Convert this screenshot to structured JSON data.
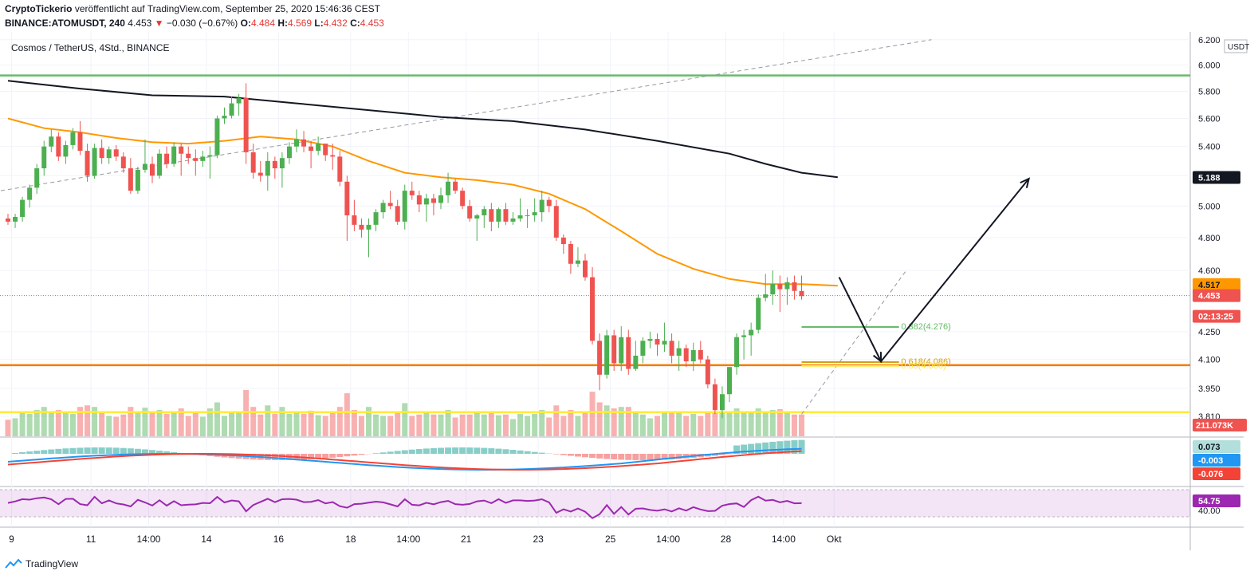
{
  "header": {
    "publisher": "CryptoTickerio",
    "published_text": "veröffentlicht auf TradingView.com, September 25, 2020 15:46:36 CEST",
    "ticker": "BINANCE:ATOMUSDT, 240",
    "last": "4.453",
    "arrow": "▼",
    "change": "−0.030 (−0.67%)",
    "o_label": "O:",
    "o": "4.484",
    "h_label": "H:",
    "h": "4.569",
    "l_label": "L:",
    "l": "4.432",
    "c_label": "C:",
    "c": "4.453"
  },
  "symbol_title": "Cosmos / TetherUS, 4Std., BINANCE",
  "footer": {
    "brand": "TradingView"
  },
  "colors": {
    "up": "#4caf50",
    "down": "#ef5350",
    "ma_orange": "#ff9800",
    "ma_black": "#131722",
    "green_line": "#66bb6a",
    "orange_line": "#f57c00",
    "yellow_line": "#ffeb3b",
    "macd_line": "#2196f3",
    "signal_line": "#f44336",
    "rsi_line": "#9c27b0"
  },
  "chart_data": {
    "type": "candlestick",
    "title": "Cosmos / TetherUS, 4Std., BINANCE",
    "scale": "log",
    "currency": "USDT",
    "ylim": [
      3.72,
      6.25
    ],
    "y_ticks": [
      "6.200",
      "6.000",
      "5.800",
      "5.600",
      "5.400",
      "5.200",
      "5.000",
      "4.800",
      "4.600",
      "4.250",
      "4.100",
      "3.950",
      "3.810"
    ],
    "x_ticks": [
      "9",
      "11",
      "14:00",
      "14",
      "16",
      "18",
      "14:00",
      "21",
      "23",
      "25",
      "14:00",
      "28",
      "14:00",
      "Okt"
    ],
    "x_ticks_index": [
      0.5,
      11.5,
      19.5,
      27.5,
      37.5,
      47.5,
      55.5,
      63.5,
      73.5,
      83.5,
      91.5,
      99.5,
      107.5,
      114.5
    ],
    "candles": [
      [
        4.92,
        4.95,
        4.88,
        4.9
      ],
      [
        4.9,
        4.95,
        4.86,
        4.93
      ],
      [
        4.93,
        5.06,
        4.9,
        5.04
      ],
      [
        5.04,
        5.14,
        4.99,
        5.12
      ],
      [
        5.12,
        5.28,
        5.08,
        5.25
      ],
      [
        5.25,
        5.44,
        5.2,
        5.4
      ],
      [
        5.4,
        5.52,
        5.36,
        5.47
      ],
      [
        5.47,
        5.5,
        5.3,
        5.33
      ],
      [
        5.33,
        5.44,
        5.28,
        5.41
      ],
      [
        5.41,
        5.53,
        5.38,
        5.5
      ],
      [
        5.5,
        5.58,
        5.34,
        5.37
      ],
      [
        5.37,
        5.42,
        5.16,
        5.2
      ],
      [
        5.2,
        5.42,
        5.18,
        5.39
      ],
      [
        5.39,
        5.45,
        5.28,
        5.32
      ],
      [
        5.32,
        5.4,
        5.28,
        5.38
      ],
      [
        5.38,
        5.41,
        5.3,
        5.33
      ],
      [
        5.33,
        5.36,
        5.22,
        5.25
      ],
      [
        5.25,
        5.32,
        5.08,
        5.1
      ],
      [
        5.1,
        5.26,
        5.08,
        5.24
      ],
      [
        5.24,
        5.45,
        5.22,
        5.28
      ],
      [
        5.28,
        5.33,
        5.15,
        5.2
      ],
      [
        5.2,
        5.38,
        5.18,
        5.35
      ],
      [
        5.35,
        5.4,
        5.25,
        5.28
      ],
      [
        5.28,
        5.43,
        5.26,
        5.4
      ],
      [
        5.4,
        5.42,
        5.2,
        5.35
      ],
      [
        5.35,
        5.4,
        5.28,
        5.32
      ],
      [
        5.32,
        5.38,
        5.2,
        5.3
      ],
      [
        5.3,
        5.37,
        5.26,
        5.33
      ],
      [
        5.33,
        5.4,
        5.18,
        5.34
      ],
      [
        5.34,
        5.62,
        5.32,
        5.6
      ],
      [
        5.6,
        5.68,
        5.56,
        5.62
      ],
      [
        5.62,
        5.76,
        5.6,
        5.71
      ],
      [
        5.71,
        5.78,
        5.62,
        5.75
      ],
      [
        5.75,
        5.86,
        5.28,
        5.36
      ],
      [
        5.36,
        5.42,
        5.18,
        5.22
      ],
      [
        5.22,
        5.3,
        5.16,
        5.2
      ],
      [
        5.2,
        5.36,
        5.1,
        5.3
      ],
      [
        5.3,
        5.33,
        5.18,
        5.25
      ],
      [
        5.25,
        5.36,
        5.12,
        5.32
      ],
      [
        5.32,
        5.43,
        5.28,
        5.4
      ],
      [
        5.4,
        5.52,
        5.36,
        5.45
      ],
      [
        5.45,
        5.51,
        5.36,
        5.4
      ],
      [
        5.4,
        5.44,
        5.25,
        5.37
      ],
      [
        5.37,
        5.47,
        5.34,
        5.42
      ],
      [
        5.42,
        5.42,
        5.3,
        5.34
      ],
      [
        5.34,
        5.42,
        5.24,
        5.33
      ],
      [
        5.33,
        5.37,
        5.13,
        5.16
      ],
      [
        5.16,
        5.2,
        4.78,
        4.94
      ],
      [
        4.94,
        5.04,
        4.84,
        4.88
      ],
      [
        4.88,
        4.92,
        4.8,
        4.85
      ],
      [
        4.85,
        4.92,
        4.68,
        4.88
      ],
      [
        4.88,
        4.98,
        4.84,
        4.96
      ],
      [
        4.96,
        5.04,
        4.92,
        5.02
      ],
      [
        5.02,
        5.1,
        4.98,
        5.0
      ],
      [
        5.0,
        5.04,
        4.88,
        4.9
      ],
      [
        4.9,
        5.14,
        4.85,
        5.1
      ],
      [
        5.1,
        5.16,
        5.04,
        5.07
      ],
      [
        5.07,
        5.1,
        4.96,
        5.01
      ],
      [
        5.01,
        5.08,
        4.9,
        5.05
      ],
      [
        5.05,
        5.08,
        4.94,
        5.02
      ],
      [
        5.02,
        5.12,
        4.98,
        5.07
      ],
      [
        5.07,
        5.22,
        5.02,
        5.16
      ],
      [
        5.16,
        5.18,
        5.08,
        5.1
      ],
      [
        5.1,
        5.12,
        4.98,
        5.0
      ],
      [
        5.0,
        5.04,
        4.9,
        4.92
      ],
      [
        4.92,
        4.95,
        4.78,
        4.94
      ],
      [
        4.94,
        5.0,
        4.86,
        4.98
      ],
      [
        4.98,
        5.02,
        4.84,
        4.9
      ],
      [
        4.9,
        4.99,
        4.86,
        4.98
      ],
      [
        4.98,
        5.02,
        4.88,
        4.9
      ],
      [
        4.9,
        4.96,
        4.88,
        4.92
      ],
      [
        4.92,
        5.05,
        4.9,
        4.94
      ],
      [
        4.94,
        4.98,
        4.86,
        4.94
      ],
      [
        4.94,
        5.05,
        4.9,
        4.96
      ],
      [
        4.96,
        5.1,
        4.9,
        5.04
      ],
      [
        5.04,
        5.06,
        4.96,
        5.0
      ],
      [
        5.0,
        5.04,
        4.78,
        4.8
      ],
      [
        4.8,
        4.82,
        4.7,
        4.76
      ],
      [
        4.76,
        4.78,
        4.58,
        4.64
      ],
      [
        4.64,
        4.74,
        4.62,
        4.66
      ],
      [
        4.66,
        4.7,
        4.54,
        4.56
      ],
      [
        4.56,
        4.62,
        4.18,
        4.2
      ],
      [
        4.2,
        4.24,
        3.94,
        4.02
      ],
      [
        4.02,
        4.26,
        4.0,
        4.23
      ],
      [
        4.23,
        4.26,
        4.04,
        4.08
      ],
      [
        4.08,
        4.28,
        4.04,
        4.22
      ],
      [
        4.22,
        4.26,
        4.02,
        4.05
      ],
      [
        4.05,
        4.2,
        4.04,
        4.12
      ],
      [
        4.12,
        4.22,
        4.08,
        4.2
      ],
      [
        4.2,
        4.25,
        4.16,
        4.21
      ],
      [
        4.21,
        4.24,
        4.12,
        4.18
      ],
      [
        4.18,
        4.3,
        4.14,
        4.2
      ],
      [
        4.2,
        4.24,
        4.08,
        4.12
      ],
      [
        4.12,
        4.2,
        4.04,
        4.16
      ],
      [
        4.16,
        4.18,
        4.06,
        4.09
      ],
      [
        4.09,
        4.19,
        4.04,
        4.15
      ],
      [
        4.15,
        4.2,
        4.08,
        4.1
      ],
      [
        4.1,
        4.12,
        3.95,
        3.97
      ],
      [
        3.97,
        4.0,
        3.82,
        3.84
      ],
      [
        3.84,
        3.96,
        3.8,
        3.92
      ],
      [
        3.92,
        4.06,
        3.88,
        4.06
      ],
      [
        4.06,
        4.24,
        4.02,
        4.22
      ],
      [
        4.22,
        4.26,
        4.1,
        4.23
      ],
      [
        4.23,
        4.3,
        4.12,
        4.26
      ],
      [
        4.26,
        4.46,
        4.24,
        4.44
      ],
      [
        4.44,
        4.58,
        4.42,
        4.46
      ],
      [
        4.46,
        4.6,
        4.4,
        4.52
      ],
      [
        4.52,
        4.57,
        4.36,
        4.49
      ],
      [
        4.49,
        4.56,
        4.4,
        4.53
      ],
      [
        4.53,
        4.57,
        4.43,
        4.48
      ],
      [
        4.48,
        4.57,
        4.43,
        4.45
      ]
    ],
    "ma50": [
      [
        0,
        5.6
      ],
      [
        5,
        5.53
      ],
      [
        10,
        5.5
      ],
      [
        15,
        5.46
      ],
      [
        20,
        5.43
      ],
      [
        25,
        5.42
      ],
      [
        30,
        5.44
      ],
      [
        35,
        5.47
      ],
      [
        40,
        5.45
      ],
      [
        45,
        5.4
      ],
      [
        50,
        5.3
      ],
      [
        55,
        5.22
      ],
      [
        60,
        5.19
      ],
      [
        65,
        5.17
      ],
      [
        70,
        5.14
      ],
      [
        75,
        5.08
      ],
      [
        80,
        4.98
      ],
      [
        85,
        4.84
      ],
      [
        90,
        4.7
      ],
      [
        95,
        4.61
      ],
      [
        100,
        4.55
      ],
      [
        105,
        4.52
      ],
      [
        110,
        4.52
      ],
      [
        115,
        4.51
      ]
    ],
    "ma200": [
      [
        0,
        5.88
      ],
      [
        10,
        5.82
      ],
      [
        20,
        5.77
      ],
      [
        30,
        5.76
      ],
      [
        40,
        5.71
      ],
      [
        50,
        5.66
      ],
      [
        60,
        5.61
      ],
      [
        70,
        5.58
      ],
      [
        80,
        5.52
      ],
      [
        90,
        5.44
      ],
      [
        100,
        5.35
      ],
      [
        105,
        5.28
      ],
      [
        110,
        5.22
      ],
      [
        115,
        5.19
      ]
    ],
    "levels": [
      {
        "price": 5.92,
        "color": "#66bb6a"
      },
      {
        "price": 4.07,
        "color": "#f57c00"
      },
      {
        "price": 3.83,
        "color": "#ffeb3b"
      }
    ],
    "fib": [
      {
        "text": "0.382(4.276)",
        "price": 4.276,
        "color": "#66bb6a"
      },
      {
        "text": "0.618(4.086)",
        "price": 4.086,
        "color": "#d4a017"
      },
      {
        "text": "0.65(4.066)",
        "price": 4.066,
        "color": "#ffeb3b"
      }
    ],
    "projection": [
      [
        115.2,
        4.56
      ],
      [
        121,
        4.09
      ],
      [
        141.5,
        5.18
      ]
    ],
    "volume_label": "211.073K",
    "macd": {
      "hist": "0.073",
      "macd": "-0.003",
      "signal": "-0.076"
    },
    "rsi": {
      "value": "54.75",
      "level": "40.00"
    },
    "price_tags": [
      {
        "text": "5.188",
        "price": 5.188,
        "bg": "#131722",
        "fg": "#ffffff"
      },
      {
        "text": "4.517",
        "price": 4.517,
        "bg": "#ff9800",
        "fg": "#131722"
      },
      {
        "text": "4.453",
        "price": 4.453,
        "bg": "#ef5350",
        "fg": "#ffffff"
      },
      {
        "text": "02:13:25",
        "price": 4.335,
        "bg": "#ef5350",
        "fg": "#ffffff"
      }
    ]
  }
}
